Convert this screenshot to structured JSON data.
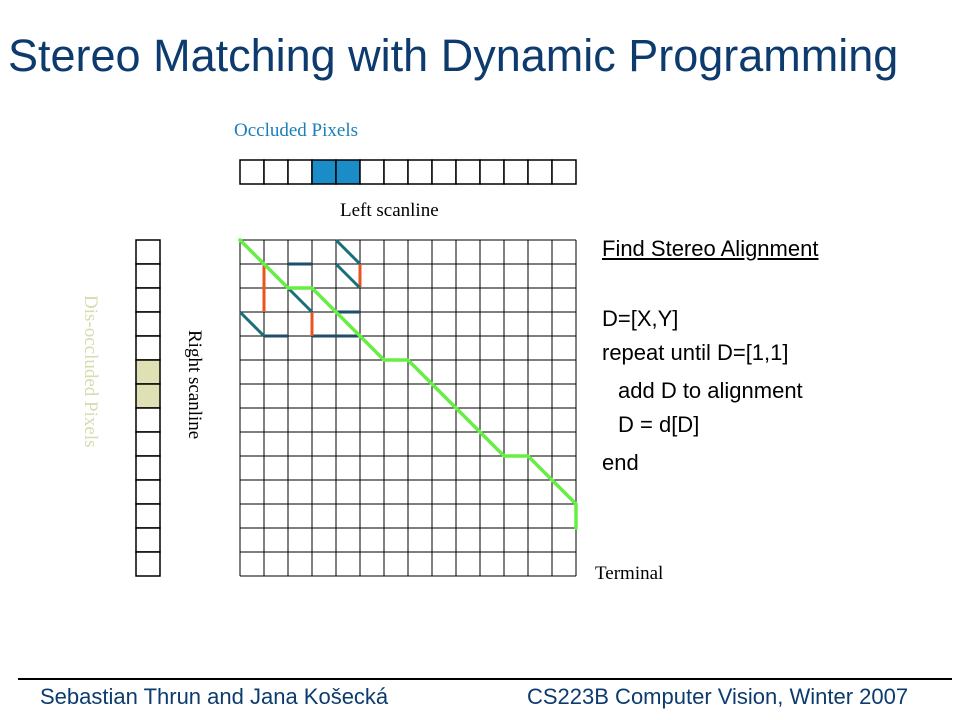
{
  "slide": {
    "title": "Stereo Matching with Dynamic Programming"
  },
  "labels": {
    "occluded": "Occluded Pixels",
    "left_scanline": "Left scanline",
    "right_scanline": "Right scanline",
    "disoccluded": "Dis-occluded Pixels",
    "terminal": "Terminal"
  },
  "algorithm": {
    "heading": "Find Stereo Alignment",
    "lines": [
      "D=[X,Y]",
      "repeat until D=[1,1]",
      "add D to alignment",
      "D = d[D]",
      "end"
    ]
  },
  "footer": {
    "authors": "Sebastian Thrun and Jana Košecká",
    "course": "CS223B Computer Vision, Winter 2007"
  },
  "diagram": {
    "grid": {
      "columns": 14,
      "rows": 14
    },
    "left_scanline": {
      "cells": 14,
      "highlighted": [
        3,
        4
      ],
      "highlight_color": "#1a8cc8"
    },
    "right_scanline": {
      "cells": 14,
      "highlighted": [
        5,
        6
      ],
      "highlight_color": "#dfe1b5"
    },
    "colors": {
      "optimal_path": "#66ee44",
      "match_edge": "#1a6f78",
      "horizontal_edge": "#1f4f66",
      "vertical_edge": "#e8541e",
      "grid_line": "#000000"
    },
    "optimal_path": [
      [
        0,
        0
      ],
      [
        1,
        1
      ],
      [
        2,
        2
      ],
      [
        3,
        2
      ],
      [
        4,
        3
      ],
      [
        5,
        4
      ],
      [
        6,
        5
      ],
      [
        7,
        5
      ],
      [
        8,
        6
      ],
      [
        9,
        7
      ],
      [
        10,
        8
      ],
      [
        11,
        9
      ],
      [
        12,
        9
      ],
      [
        13,
        10
      ],
      [
        14,
        11
      ],
      [
        14,
        12
      ]
    ],
    "match_edges": [
      [
        [
          0,
          0
        ],
        [
          1,
          1
        ]
      ],
      [
        [
          4,
          0
        ],
        [
          5,
          1
        ]
      ],
      [
        [
          1,
          1
        ],
        [
          2,
          2
        ]
      ],
      [
        [
          4,
          1
        ],
        [
          5,
          2
        ]
      ],
      [
        [
          2,
          2
        ],
        [
          3,
          3
        ]
      ],
      [
        [
          3,
          2
        ],
        [
          4,
          3
        ]
      ],
      [
        [
          0,
          3
        ],
        [
          1,
          4
        ]
      ]
    ],
    "horizontal_edges": [
      [
        [
          2,
          1
        ],
        [
          3,
          1
        ]
      ],
      [
        [
          4,
          3
        ],
        [
          5,
          3
        ]
      ],
      [
        [
          1,
          4
        ],
        [
          2,
          4
        ]
      ],
      [
        [
          3,
          4
        ],
        [
          4,
          4
        ]
      ],
      [
        [
          4,
          4
        ],
        [
          5,
          4
        ]
      ]
    ],
    "vertical_edges": [
      [
        [
          1,
          1
        ],
        [
          1,
          3
        ]
      ],
      [
        [
          5,
          1
        ],
        [
          5,
          2
        ]
      ],
      [
        [
          3,
          3
        ],
        [
          3,
          4
        ]
      ]
    ]
  }
}
